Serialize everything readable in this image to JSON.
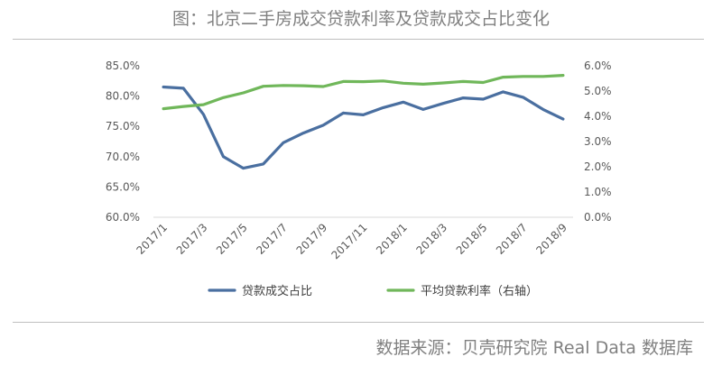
{
  "page": {
    "title": "图：北京二手房成交贷款利率及贷款成交占比变化",
    "source": "数据来源：贝壳研究院 Real Data 数据库"
  },
  "chart_data": {
    "type": "line",
    "title": "图：北京二手房成交贷款利率及贷款成交占比变化",
    "x": [
      "2017/1",
      "2017/2",
      "2017/3",
      "2017/4",
      "2017/5",
      "2017/6",
      "2017/7",
      "2017/8",
      "2017/9",
      "2017/10",
      "2017/11",
      "2017/12",
      "2018/1",
      "2018/2",
      "2018/3",
      "2018/4",
      "2018/5",
      "2018/6",
      "2018/7",
      "2018/8",
      "2018/9"
    ],
    "x_tick_labels": [
      "2017/1",
      "2017/3",
      "2017/5",
      "2017/7",
      "2017/9",
      "2017/11",
      "2018/1",
      "2018/3",
      "2018/5",
      "2018/7",
      "2018/9"
    ],
    "y_left": {
      "ticks": [
        "60.0%",
        "65.0%",
        "70.0%",
        "75.0%",
        "80.0%",
        "85.0%"
      ],
      "range": [
        60,
        85
      ]
    },
    "y_right": {
      "ticks": [
        "0.0%",
        "1.0%",
        "2.0%",
        "3.0%",
        "4.0%",
        "5.0%",
        "6.0%"
      ],
      "range": [
        0,
        6
      ]
    },
    "series": [
      {
        "name": "贷款成交占比",
        "axis": "left",
        "color": "#4a6fa0",
        "values": [
          81.5,
          81.3,
          77.0,
          70.0,
          68.1,
          68.8,
          72.3,
          73.9,
          75.2,
          77.2,
          76.9,
          78.1,
          79.0,
          77.8,
          78.8,
          79.7,
          79.5,
          80.7,
          79.8,
          77.8,
          76.2
        ]
      },
      {
        "name": "平均贷款利率（右轴）",
        "axis": "right",
        "color": "#70b75a",
        "values": [
          4.3,
          4.39,
          4.46,
          4.74,
          4.93,
          5.19,
          5.22,
          5.21,
          5.18,
          5.38,
          5.37,
          5.4,
          5.31,
          5.27,
          5.32,
          5.38,
          5.34,
          5.55,
          5.58,
          5.58,
          5.62
        ]
      }
    ],
    "grid": false,
    "legend": "bottom-center"
  }
}
